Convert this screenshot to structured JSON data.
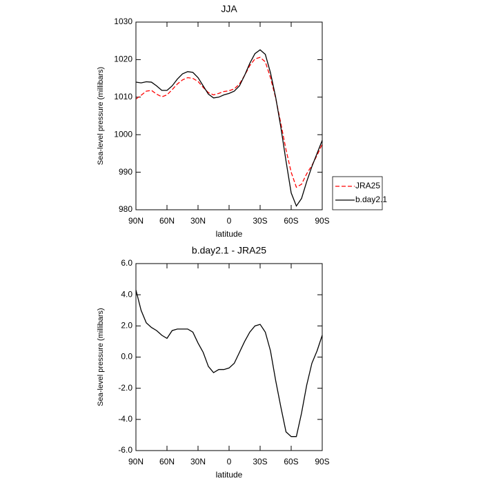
{
  "chart_data": [
    {
      "type": "line",
      "title": "JJA",
      "x_label": "latitude",
      "y_label": "Sea-level pressure (millibars)",
      "x": [
        90,
        85,
        80,
        75,
        70,
        65,
        60,
        55,
        50,
        45,
        40,
        35,
        30,
        25,
        20,
        15,
        10,
        5,
        0,
        -5,
        -10,
        -15,
        -20,
        -25,
        -30,
        -35,
        -40,
        -45,
        -50,
        -55,
        -60,
        -65,
        -70,
        -75,
        -80,
        -85,
        -90
      ],
      "xlim": [
        90,
        -90
      ],
      "xticks": [
        {
          "value": 90,
          "label": "90N"
        },
        {
          "value": 60,
          "label": "60N"
        },
        {
          "value": 30,
          "label": "30N"
        },
        0,
        {
          "value": -30,
          "label": "30S"
        },
        {
          "value": -60,
          "label": "60S"
        },
        {
          "value": -90,
          "label": "90S"
        }
      ],
      "ylim": [
        980,
        1030
      ],
      "yticks": [
        980,
        990,
        1000,
        1010,
        1020,
        1030
      ],
      "legend": "right",
      "series": [
        {
          "name": "JRA25",
          "color": "#ff0000",
          "line_style": "dashed",
          "values": [
            1009.5,
            1010.5,
            1011.6,
            1011.8,
            1010.8,
            1010.1,
            1010.6,
            1012,
            1013.5,
            1014.6,
            1015.2,
            1015,
            1014.2,
            1012.6,
            1011.2,
            1010.6,
            1011,
            1011.5,
            1011.7,
            1012.2,
            1013.5,
            1015.8,
            1018.4,
            1020.2,
            1020.6,
            1019.4,
            1015.2,
            1009.8,
            1003,
            996,
            990,
            986,
            986.8,
            989.6,
            991.8,
            994.5,
            997.5
          ]
        },
        {
          "name": "b.day2.1",
          "color": "#000000",
          "line_style": "solid",
          "values": [
            1014,
            1013.8,
            1014.1,
            1014,
            1013,
            1011.8,
            1011.8,
            1013,
            1014.8,
            1016.2,
            1016.8,
            1016.6,
            1015.2,
            1013,
            1010.8,
            1009.8,
            1010,
            1010.6,
            1011,
            1011.6,
            1013,
            1015.8,
            1019,
            1021.6,
            1022.6,
            1021.4,
            1016.5,
            1010,
            1002,
            993,
            984.5,
            981,
            983,
            987.5,
            991.5,
            995,
            998.5
          ]
        }
      ]
    },
    {
      "type": "line",
      "title": "b.day2.1 - JRA25",
      "x_label": "latitude",
      "y_label": "Sea-level pressure (millibars)",
      "x": [
        90,
        85,
        80,
        75,
        70,
        65,
        60,
        55,
        50,
        45,
        40,
        35,
        30,
        25,
        20,
        15,
        10,
        5,
        0,
        -5,
        -10,
        -15,
        -20,
        -25,
        -30,
        -35,
        -40,
        -45,
        -50,
        -55,
        -60,
        -65,
        -70,
        -75,
        -80,
        -85,
        -90
      ],
      "xlim": [
        90,
        -90
      ],
      "xticks": [
        {
          "value": 90,
          "label": "90N"
        },
        {
          "value": 60,
          "label": "60N"
        },
        {
          "value": 30,
          "label": "30N"
        },
        0,
        {
          "value": -30,
          "label": "30S"
        },
        {
          "value": -60,
          "label": "60S"
        },
        {
          "value": -90,
          "label": "90S"
        }
      ],
      "ylim": [
        -6,
        6
      ],
      "yticks": [
        {
          "value": -6,
          "label": "-6.0"
        },
        {
          "value": -4,
          "label": "-4.0"
        },
        {
          "value": -2,
          "label": "-2.0"
        },
        {
          "value": 0,
          "label": "0.0"
        },
        {
          "value": 2,
          "label": "2.0"
        },
        {
          "value": 4,
          "label": "4.0"
        },
        {
          "value": 6,
          "label": "6.0"
        }
      ],
      "series": [
        {
          "color": "#000000",
          "line_style": "solid",
          "values": [
            4.3,
            3.0,
            2.2,
            1.9,
            1.7,
            1.4,
            1.2,
            1.7,
            1.8,
            1.8,
            1.8,
            1.6,
            0.9,
            0.3,
            -0.6,
            -1.0,
            -0.8,
            -0.8,
            -0.7,
            -0.4,
            0.3,
            1.0,
            1.6,
            2.0,
            2.1,
            1.6,
            0.4,
            -1.5,
            -3.2,
            -4.8,
            -5.1,
            -5.1,
            -3.6,
            -1.8,
            -0.4,
            0.4,
            1.4
          ]
        }
      ]
    }
  ]
}
